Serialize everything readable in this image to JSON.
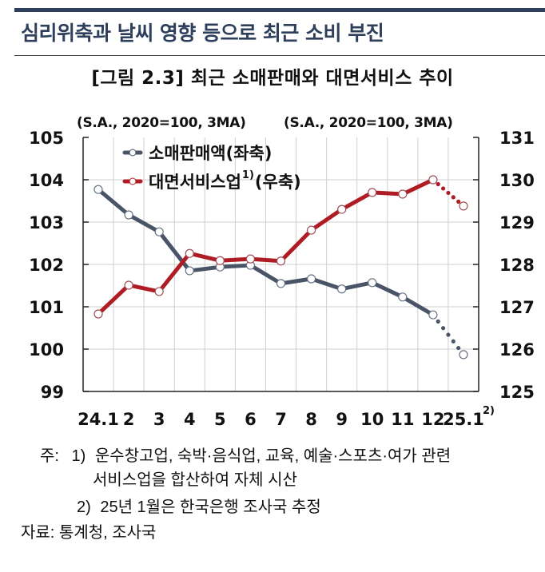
{
  "header": {
    "section_title": "심리위축과 날씨 영향 등으로 최근 소비 부진",
    "figure_title": "[그림 2.3] 최근 소매판매와 대면서비스 추이"
  },
  "chart_data": {
    "type": "line",
    "title": "[그림 2.3] 최근 소매판매와 대면서비스 추이",
    "left_axis_unit": "(S.A., 2020=100, 3MA)",
    "right_axis_unit": "(S.A., 2020=100, 3MA)",
    "categories": [
      "24.1",
      "2",
      "3",
      "4",
      "5",
      "6",
      "7",
      "8",
      "9",
      "10",
      "11",
      "12",
      "25.1"
    ],
    "x_last_label_superscript": "2)",
    "left_ylim": [
      99,
      105
    ],
    "left_ticks": [
      "105",
      "104",
      "103",
      "102",
      "101",
      "100",
      "99"
    ],
    "right_ylim": [
      125,
      131
    ],
    "right_ticks": [
      "131",
      "130",
      "129",
      "128",
      "127",
      "126",
      "125"
    ],
    "grid": true,
    "legend_position": "upper-left inside",
    "series": [
      {
        "name": "소매판매액(좌축)",
        "axis": "left",
        "color": "#4a5467",
        "values": [
          103.77,
          103.17,
          102.77,
          101.85,
          101.94,
          101.98,
          101.55,
          101.66,
          101.42,
          101.57,
          101.23,
          100.81,
          99.87
        ],
        "dotted_from_index": 11
      },
      {
        "name": "대면서비스업",
        "name_superscript": "1)",
        "name_suffix": "(우축)",
        "axis": "right",
        "color": "#b01c24",
        "values": [
          126.83,
          127.51,
          127.36,
          128.26,
          128.09,
          128.13,
          128.08,
          128.81,
          129.3,
          129.7,
          129.66,
          130.0,
          129.38
        ],
        "dotted_from_index": 11
      }
    ]
  },
  "notes": {
    "note1_prefix": "주:",
    "note1_num": "1)",
    "note1_line1": "운수창고업, 숙박·음식업, 교육, 예술·스포츠·여가 관련",
    "note1_line2": "서비스업을 합산하여 자체 시산",
    "note2_num": "2)",
    "note2_text": "25년 1월은 한국은행 조사국 추정",
    "source": "자료: 통계청, 조사국"
  }
}
